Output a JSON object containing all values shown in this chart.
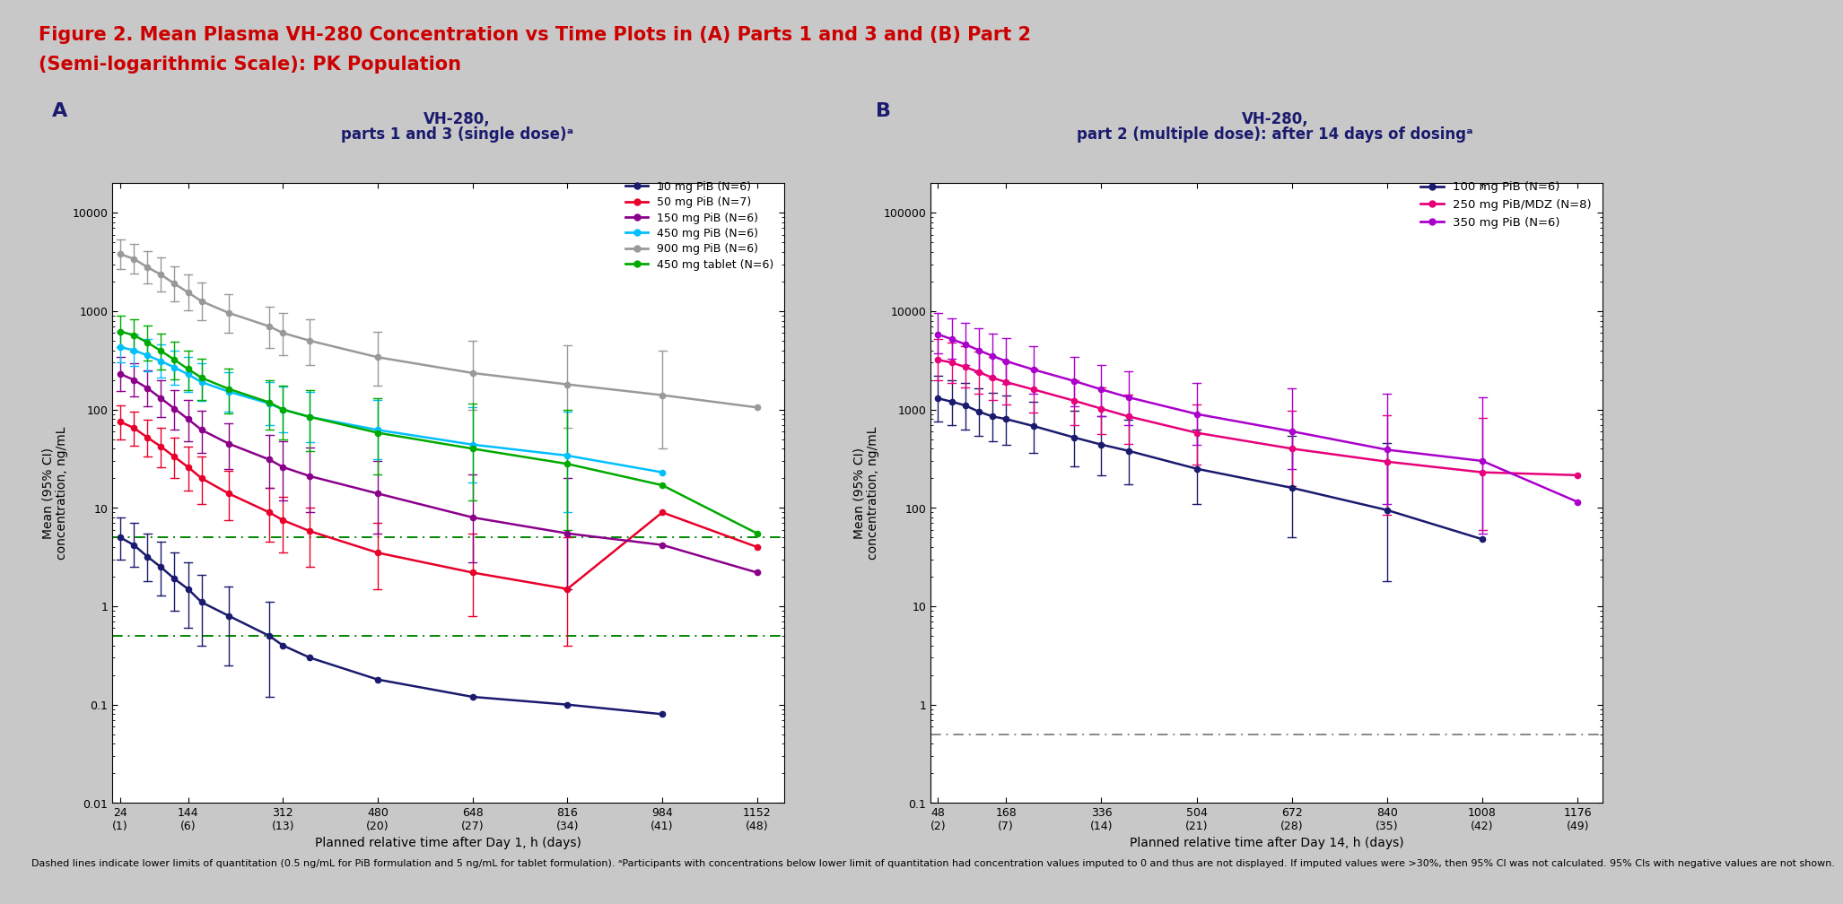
{
  "fig_title_line1": "Figure 2. Mean Plasma VH-280 Concentration vs Time Plots in (A) Parts 1 and 3 and (B) Part 2",
  "fig_title_line2": "(Semi-logarithmic Scale): PK Population",
  "panelA": {
    "label": "A",
    "title_line1": "VH-280,",
    "title_line2": "parts 1 and 3 (single dose)ᵃ",
    "xlabel": "Planned relative time after Day 1, h (days)",
    "ylabel": "Mean (95% CI)\nconcentration, ng/mL",
    "xtick_labels": [
      "24\n(1)",
      "144\n(6)",
      "312\n(13)",
      "480\n(20)",
      "648\n(27)",
      "816\n(34)",
      "984\n(41)",
      "1152\n(48)"
    ],
    "xtick_vals": [
      24,
      144,
      312,
      480,
      648,
      816,
      984,
      1152
    ],
    "xlim": [
      10,
      1200
    ],
    "ylim": [
      0.01,
      20000
    ],
    "yticks": [
      0.01,
      0.1,
      1,
      10,
      100,
      1000,
      10000
    ],
    "ytick_labels": [
      "0.01",
      "0.1",
      "1",
      "10",
      "100",
      "1000",
      "10000"
    ],
    "dashed_line_pib": 0.5,
    "dashed_line_tablet": 5.0,
    "dashed_color": "#008800",
    "series": [
      {
        "label": "10 mg PiB (N=6)",
        "color": "#1a1a6e",
        "x": [
          24,
          48,
          72,
          96,
          120,
          144,
          168,
          216,
          288,
          312,
          360,
          480,
          648,
          816,
          984
        ],
        "y": [
          5.0,
          4.2,
          3.2,
          2.5,
          1.9,
          1.5,
          1.1,
          0.8,
          0.5,
          0.4,
          0.3,
          0.18,
          0.12,
          0.1,
          0.08
        ],
        "y_lo": [
          3.0,
          2.5,
          1.8,
          1.3,
          0.9,
          0.6,
          0.4,
          0.25,
          0.12,
          null,
          null,
          null,
          null,
          null,
          null
        ],
        "y_hi": [
          8.0,
          7.0,
          5.5,
          4.5,
          3.5,
          2.8,
          2.1,
          1.6,
          1.1,
          null,
          null,
          null,
          null,
          null,
          null
        ]
      },
      {
        "label": "50 mg PiB (N=7)",
        "color": "#e8002a",
        "x": [
          24,
          48,
          72,
          96,
          120,
          144,
          168,
          216,
          288,
          312,
          360,
          480,
          648,
          816,
          984,
          1152
        ],
        "y": [
          75,
          65,
          52,
          42,
          33,
          26,
          20,
          14,
          9.0,
          7.5,
          5.8,
          3.5,
          2.2,
          1.5,
          9.0,
          4.0
        ],
        "y_lo": [
          50,
          43,
          33,
          26,
          20,
          15,
          11,
          7.5,
          4.5,
          3.5,
          2.5,
          1.5,
          0.8,
          0.4,
          null,
          null
        ],
        "y_hi": [
          110,
          95,
          78,
          65,
          52,
          42,
          33,
          24,
          16,
          13,
          10,
          7.0,
          5.5,
          5.0,
          null,
          null
        ]
      },
      {
        "label": "150 mg PiB (N=6)",
        "color": "#8b008b",
        "x": [
          24,
          48,
          72,
          96,
          120,
          144,
          168,
          216,
          288,
          312,
          360,
          480,
          648,
          816,
          984,
          1152
        ],
        "y": [
          230,
          200,
          165,
          130,
          102,
          80,
          62,
          45,
          31,
          26,
          21,
          14,
          8.0,
          5.5,
          4.2,
          2.2
        ],
        "y_lo": [
          155,
          135,
          108,
          83,
          63,
          48,
          36,
          25,
          16,
          12,
          9.0,
          5.5,
          2.8,
          1.5,
          null,
          null
        ],
        "y_hi": [
          340,
          295,
          248,
          200,
          158,
          125,
          97,
          73,
          55,
          48,
          41,
          30,
          22,
          20,
          null,
          null
        ]
      },
      {
        "label": "450 mg PiB (N=6)",
        "color": "#00bfff",
        "x": [
          24,
          48,
          72,
          96,
          120,
          144,
          168,
          216,
          288,
          312,
          360,
          480,
          648,
          816,
          984,
          1152
        ],
        "y": [
          430,
          400,
          355,
          310,
          268,
          228,
          190,
          152,
          115,
          100,
          84,
          62,
          44,
          34,
          23,
          null
        ],
        "y_lo": [
          300,
          278,
          244,
          210,
          179,
          150,
          123,
          96,
          70,
          59,
          47,
          31,
          18,
          9.0,
          null,
          null
        ],
        "y_hi": [
          620,
          580,
          520,
          460,
          400,
          345,
          293,
          240,
          190,
          170,
          150,
          125,
          105,
          95,
          null,
          null
        ]
      },
      {
        "label": "900 mg PiB (N=6)",
        "color": "#999999",
        "x": [
          24,
          48,
          72,
          96,
          120,
          144,
          168,
          216,
          288,
          312,
          360,
          480,
          648,
          816,
          984,
          1152
        ],
        "y": [
          3800,
          3400,
          2800,
          2350,
          1900,
          1550,
          1260,
          960,
          700,
          600,
          500,
          340,
          235,
          180,
          140,
          105
        ],
        "y_lo": [
          2700,
          2400,
          1900,
          1580,
          1260,
          1010,
          810,
          600,
          420,
          355,
          285,
          175,
          100,
          65,
          40,
          null
        ],
        "y_hi": [
          5400,
          4800,
          4100,
          3500,
          2850,
          2350,
          1950,
          1500,
          1100,
          960,
          820,
          620,
          500,
          450,
          400,
          null
        ]
      },
      {
        "label": "450 mg tablet (N=6)",
        "color": "#00aa00",
        "x": [
          24,
          48,
          72,
          96,
          120,
          144,
          168,
          216,
          288,
          312,
          360,
          480,
          648,
          816,
          984,
          1152
        ],
        "y": [
          620,
          570,
          480,
          395,
          320,
          258,
          210,
          162,
          118,
          100,
          84,
          58,
          40,
          28,
          17,
          5.5
        ],
        "y_lo": [
          430,
          390,
          318,
          255,
          202,
          158,
          125,
          92,
          62,
          50,
          38,
          22,
          12,
          6.0,
          null,
          null
        ],
        "y_hi": [
          900,
          825,
          710,
          596,
          490,
          400,
          330,
          262,
          198,
          175,
          156,
          130,
          115,
          100,
          null,
          null
        ]
      }
    ]
  },
  "panelB": {
    "label": "B",
    "title_line1": "VH-280,",
    "title_line2": "part 2 (multiple dose): after 14 days of dosingᵃ",
    "xlabel": "Planned relative time after Day 14, h (days)",
    "ylabel": "Mean (95% CI)\nconcentration, ng/mL",
    "xtick_labels": [
      "48\n(2)",
      "168\n(7)",
      "336\n(14)",
      "504\n(21)",
      "672\n(28)",
      "840\n(35)",
      "1008\n(42)",
      "1176\n(49)"
    ],
    "xtick_vals": [
      48,
      168,
      336,
      504,
      672,
      840,
      1008,
      1176
    ],
    "xlim": [
      35,
      1220
    ],
    "ylim": [
      0.1,
      200000
    ],
    "yticks": [
      0.1,
      1,
      10,
      100,
      1000,
      10000,
      100000
    ],
    "ytick_labels": [
      "0.1",
      "1",
      "10",
      "100",
      "1000",
      "10000",
      "100000"
    ],
    "dashed_line": 0.5,
    "dashed_color": "#888888",
    "series": [
      {
        "label": "100 mg PiB (N=6)",
        "color": "#1a1a6e",
        "x": [
          48,
          72,
          96,
          120,
          144,
          168,
          216,
          288,
          336,
          384,
          504,
          672,
          840,
          1008,
          1176
        ],
        "y": [
          1300,
          1200,
          1100,
          950,
          850,
          800,
          680,
          520,
          440,
          380,
          250,
          160,
          95,
          48,
          null
        ],
        "y_lo": [
          750,
          690,
          630,
          540,
          475,
          440,
          360,
          265,
          215,
          175,
          110,
          50,
          18,
          null,
          null
        ],
        "y_hi": [
          2200,
          2000,
          1850,
          1650,
          1480,
          1380,
          1200,
          980,
          860,
          780,
          620,
          540,
          460,
          null,
          null
        ]
      },
      {
        "label": "250 mg PiB/MDZ (N=8)",
        "color": "#e8007a",
        "x": [
          48,
          72,
          96,
          120,
          144,
          168,
          216,
          288,
          336,
          384,
          504,
          672,
          840,
          1008,
          1176
        ],
        "y": [
          3200,
          3000,
          2700,
          2400,
          2100,
          1900,
          1600,
          1230,
          1020,
          850,
          580,
          400,
          295,
          230,
          215
        ],
        "y_lo": [
          2000,
          1860,
          1660,
          1460,
          1260,
          1130,
          930,
          700,
          560,
          450,
          275,
          165,
          85,
          60,
          null
        ],
        "y_hi": [
          5200,
          4800,
          4400,
          3900,
          3400,
          3100,
          2600,
          2000,
          1680,
          1430,
          1120,
          975,
          880,
          820,
          null
        ]
      },
      {
        "label": "350 mg PiB (N=6)",
        "color": "#aa00cc",
        "x": [
          48,
          72,
          96,
          120,
          144,
          168,
          216,
          288,
          336,
          384,
          504,
          672,
          840,
          1008,
          1176
        ],
        "y": [
          5800,
          5200,
          4600,
          4000,
          3500,
          3100,
          2550,
          1950,
          1600,
          1330,
          900,
          600,
          390,
          300,
          115
        ],
        "y_lo": [
          3700,
          3260,
          2840,
          2420,
          2080,
          1820,
          1460,
          1080,
          860,
          700,
          435,
          250,
          110,
          55,
          null
        ],
        "y_hi": [
          9500,
          8500,
          7600,
          6700,
          5900,
          5300,
          4400,
          3400,
          2850,
          2440,
          1850,
          1650,
          1450,
          1320,
          null
        ]
      }
    ]
  },
  "footnote": "Dashed lines indicate lower limits of quantitation (0.5 ng/mL for PiB formulation and 5 ng/mL for tablet formulation). ᵃParticipants with concentrations below lower limit of quantitation had concentration values imputed to 0 and thus are not displayed. If imputed values were >30%, then 95% CI was not calculated. 95% CIs with negative values are not shown.",
  "title_color": "#cc0000",
  "label_color": "#1a1a6e"
}
